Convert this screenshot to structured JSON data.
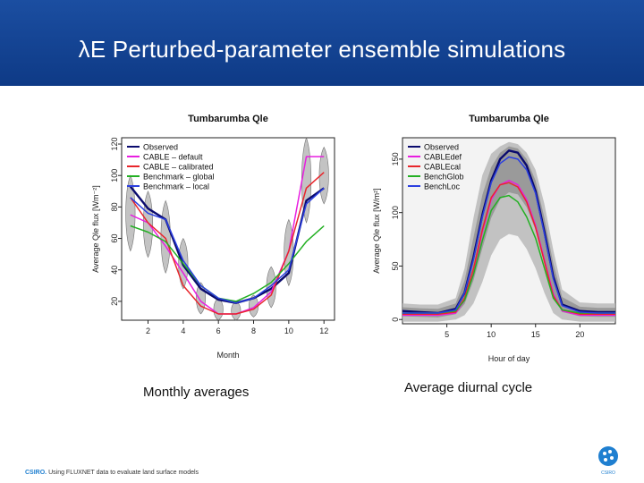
{
  "slide": {
    "title": "λE Perturbed-parameter ensemble simulations",
    "caption_left": "Monthly averages",
    "caption_right": "Average diurnal cycle",
    "footer_brand": "CSIRO.",
    "footer_text": "Using FLUXNET data to evaluate land surface models",
    "logo_text": "CSIRO",
    "colors": {
      "title_band": "#1b4ea1",
      "brand": "#1f7fd0"
    }
  },
  "chart_data": [
    {
      "type": "line",
      "title": "Tumbarumba Qle",
      "xlabel": "Month",
      "ylabel": "Average Qle flux [Wm⁻²]",
      "xlim": [
        0.5,
        12.6
      ],
      "ylim": [
        8,
        124
      ],
      "xticks": [
        2,
        4,
        6,
        8,
        10,
        12
      ],
      "yticks": [
        20,
        40,
        60,
        80,
        100,
        120
      ],
      "legend_position": "top-left",
      "x": [
        1,
        2,
        3,
        4,
        5,
        6,
        7,
        8,
        9,
        10,
        11,
        12
      ],
      "series": [
        {
          "name": "Observed",
          "color": "#0a0a6e",
          "values": [
            93,
            79,
            72,
            43,
            28,
            21,
            19,
            22,
            28,
            38,
            84,
            92
          ]
        },
        {
          "name": "CABLE – default",
          "color": "#e81ee0",
          "values": [
            75,
            70,
            55,
            38,
            20,
            12,
            12,
            16,
            26,
            52,
            112,
            112
          ]
        },
        {
          "name": "CABLE – calibrated",
          "color": "#e8262c",
          "values": [
            86,
            70,
            60,
            30,
            17,
            12,
            12,
            15,
            24,
            52,
            92,
            102
          ]
        },
        {
          "name": "Benchmark – global",
          "color": "#23b023",
          "values": [
            68,
            64,
            58,
            44,
            30,
            22,
            20,
            25,
            32,
            44,
            58,
            68
          ]
        },
        {
          "name": "Benchmark – local",
          "color": "#2b3fe0",
          "values": [
            86,
            76,
            72,
            46,
            30,
            22,
            19,
            22,
            30,
            40,
            82,
            92
          ]
        }
      ],
      "ensemble_spread": {
        "low": [
          52,
          48,
          38,
          28,
          12,
          8,
          8,
          10,
          16,
          30,
          70,
          82
        ],
        "high": [
          100,
          90,
          84,
          60,
          32,
          22,
          20,
          24,
          42,
          72,
          124,
          118
        ]
      }
    },
    {
      "type": "line",
      "title": "Tumbarumba Qle",
      "xlabel": "Hour of day",
      "ylabel": "Average Qle flux [W/m²]",
      "xlim": [
        0,
        24
      ],
      "ylim": [
        -4,
        170
      ],
      "xticks": [
        5,
        10,
        15,
        20
      ],
      "yticks": [
        0,
        50,
        100,
        150
      ],
      "legend_position": "top-left",
      "x": [
        0,
        2,
        4,
        6,
        7,
        8,
        9,
        10,
        11,
        12,
        13,
        14,
        15,
        16,
        17,
        18,
        20,
        22,
        24
      ],
      "series": [
        {
          "name": "Observed",
          "color": "#0a0a6e",
          "values": [
            8,
            7,
            6,
            10,
            25,
            58,
            98,
            130,
            150,
            158,
            156,
            144,
            120,
            82,
            40,
            14,
            8,
            7,
            7
          ]
        },
        {
          "name": "CABLEdef",
          "color": "#e81ee0",
          "values": [
            4,
            4,
            4,
            6,
            18,
            45,
            82,
            112,
            126,
            130,
            126,
            112,
            88,
            56,
            24,
            8,
            4,
            4,
            4
          ]
        },
        {
          "name": "CABLEcal",
          "color": "#e8262c",
          "values": [
            5,
            5,
            5,
            7,
            20,
            47,
            84,
            114,
            126,
            128,
            124,
            110,
            86,
            54,
            22,
            9,
            5,
            5,
            5
          ]
        },
        {
          "name": "BenchGlob",
          "color": "#23b023",
          "values": [
            6,
            6,
            6,
            8,
            18,
            42,
            74,
            102,
            114,
            116,
            110,
            96,
            76,
            48,
            20,
            9,
            6,
            6,
            6
          ]
        },
        {
          "name": "BenchLoc",
          "color": "#2b3fe0",
          "values": [
            6,
            6,
            6,
            9,
            25,
            56,
            96,
            128,
            146,
            152,
            150,
            140,
            118,
            80,
            38,
            13,
            7,
            6,
            6
          ]
        }
      ],
      "ensemble_spread": {
        "low": [
          -2,
          -2,
          -2,
          0,
          4,
          15,
          35,
          60,
          75,
          80,
          78,
          66,
          48,
          25,
          6,
          0,
          -2,
          -2,
          -2
        ],
        "high": [
          15,
          14,
          14,
          20,
          48,
          95,
          135,
          155,
          162,
          166,
          164,
          156,
          140,
          108,
          65,
          28,
          16,
          15,
          15
        ]
      }
    }
  ]
}
